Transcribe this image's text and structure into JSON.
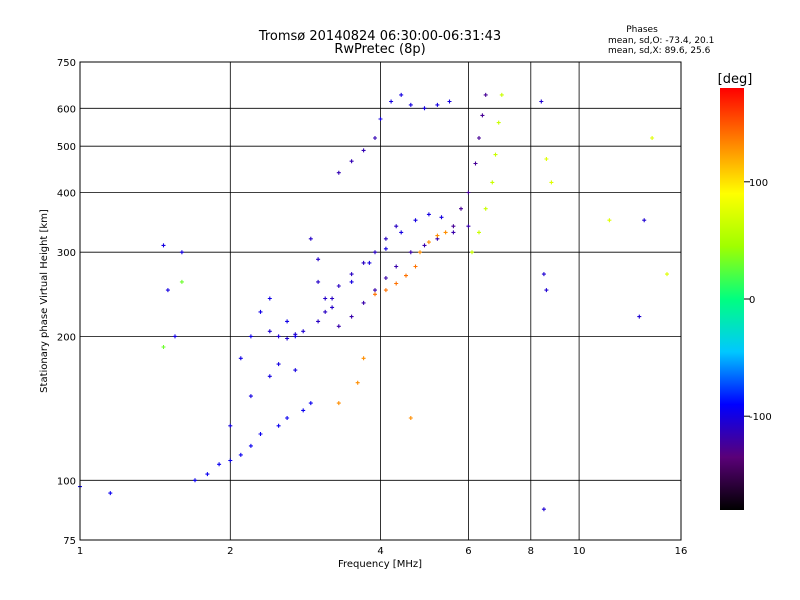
{
  "chart_data": {
    "type": "scatter",
    "title": "Tromsø 20140824 06:30:00-06:31:43",
    "subtitle": "RwPretec (8p)",
    "xlabel": "Frequency [MHz]",
    "ylabel": "Stationary phase Virtual Height [km]",
    "x_scale": "log",
    "y_scale": "log",
    "xlim": [
      1,
      16
    ],
    "ylim": [
      75,
      750
    ],
    "x_ticks": [
      1,
      2,
      4,
      6,
      8,
      10,
      16
    ],
    "y_ticks": [
      75,
      100,
      200,
      300,
      400,
      500,
      600,
      750
    ],
    "grid": true,
    "stats": {
      "heading": "Phases",
      "line1": "mean, sd,O: -73.4, 20.1",
      "line2": "mean, sd,X:  89.6, 25.6"
    },
    "colorbar": {
      "label": "[deg]",
      "range": [
        -180,
        180
      ],
      "ticks": [
        100,
        0,
        -100
      ],
      "colors": [
        "#000000",
        "#5a0078",
        "#0000ff",
        "#00c8ff",
        "#00ff80",
        "#a0ff00",
        "#ffff00",
        "#ff8000",
        "#ff0000"
      ]
    },
    "series": [
      {
        "phase": -95,
        "x": [
          1.0,
          1.15
        ],
        "y": [
          97,
          94
        ]
      },
      {
        "phase": -100,
        "x": [
          1.47,
          1.5,
          1.55,
          1.6
        ],
        "y": [
          310,
          250,
          200,
          300
        ]
      },
      {
        "phase": 30,
        "x": [
          1.47,
          1.6
        ],
        "y": [
          190,
          260
        ]
      },
      {
        "phase": -95,
        "x": [
          1.7,
          1.8,
          1.9,
          2.0,
          2.1,
          2.2,
          2.3,
          2.5,
          2.6,
          2.8,
          2.9
        ],
        "y": [
          100,
          103,
          108,
          110,
          113,
          118,
          125,
          130,
          135,
          140,
          145
        ]
      },
      {
        "phase": -100,
        "x": [
          2.0,
          2.2,
          2.4,
          2.5,
          2.7
        ],
        "y": [
          130,
          150,
          165,
          175,
          170
        ]
      },
      {
        "phase": -98,
        "x": [
          2.1,
          2.2,
          2.3,
          2.4,
          2.6,
          2.7
        ],
        "y": [
          180,
          200,
          225,
          240,
          215,
          200
        ]
      },
      {
        "phase": -105,
        "x": [
          2.4,
          2.5,
          2.6,
          2.7,
          2.8
        ],
        "y": [
          205,
          200,
          198,
          202,
          205
        ]
      },
      {
        "phase": -110,
        "x": [
          3.0,
          3.1,
          3.2,
          3.3,
          3.5,
          3.7,
          3.9,
          4.1,
          4.3
        ],
        "y": [
          215,
          225,
          240,
          255,
          270,
          285,
          300,
          320,
          340
        ]
      },
      {
        "phase": -118,
        "x": [
          3.3,
          3.5,
          3.7,
          3.9,
          4.1,
          4.3,
          4.6,
          4.9,
          5.2,
          5.6,
          6.0
        ],
        "y": [
          210,
          220,
          235,
          250,
          265,
          280,
          300,
          310,
          320,
          330,
          340
        ]
      },
      {
        "phase": -100,
        "x": [
          3.5,
          3.8,
          4.1,
          4.4,
          4.7,
          5.0,
          5.3
        ],
        "y": [
          260,
          285,
          305,
          330,
          350,
          360,
          355
        ]
      },
      {
        "phase": -108,
        "x": [
          2.9,
          3.0,
          3.0,
          3.1,
          3.2
        ],
        "y": [
          320,
          290,
          260,
          240,
          230
        ]
      },
      {
        "phase": -115,
        "x": [
          3.3,
          3.5,
          3.7,
          3.9
        ],
        "y": [
          440,
          465,
          490,
          520
        ]
      },
      {
        "phase": -100,
        "x": [
          4.0,
          4.2,
          4.4,
          4.6,
          4.9,
          5.2,
          5.5
        ],
        "y": [
          570,
          620,
          640,
          610,
          600,
          610,
          620
        ]
      },
      {
        "phase": -125,
        "x": [
          5.6,
          5.8,
          6.0,
          6.2,
          6.3,
          6.4,
          6.5
        ],
        "y": [
          340,
          370,
          400,
          460,
          520,
          580,
          640
        ]
      },
      {
        "phase": 65,
        "x": [
          6.1,
          6.3,
          6.5,
          6.7,
          6.8,
          6.9,
          7.0
        ],
        "y": [
          300,
          330,
          370,
          420,
          480,
          560,
          640
        ]
      },
      {
        "phase": 140,
        "x": [
          3.9,
          4.1,
          4.3,
          4.5,
          4.7
        ],
        "y": [
          245,
          250,
          258,
          268,
          280
        ]
      },
      {
        "phase": 130,
        "x": [
          4.8,
          5.0,
          5.2,
          5.4
        ],
        "y": [
          300,
          315,
          325,
          330
        ]
      },
      {
        "phase": 130,
        "x": [
          3.3,
          3.6,
          3.7,
          4.6
        ],
        "y": [
          145,
          160,
          180,
          135
        ]
      },
      {
        "phase": -105,
        "x": [
          8.4,
          8.5,
          8.6,
          8.5,
          13.5,
          13.2
        ],
        "y": [
          620,
          270,
          250,
          87,
          350,
          220
        ]
      },
      {
        "phase": 75,
        "x": [
          8.6,
          8.8,
          11.5,
          14.0,
          15.0
        ],
        "y": [
          470,
          420,
          350,
          520,
          270
        ]
      }
    ]
  }
}
